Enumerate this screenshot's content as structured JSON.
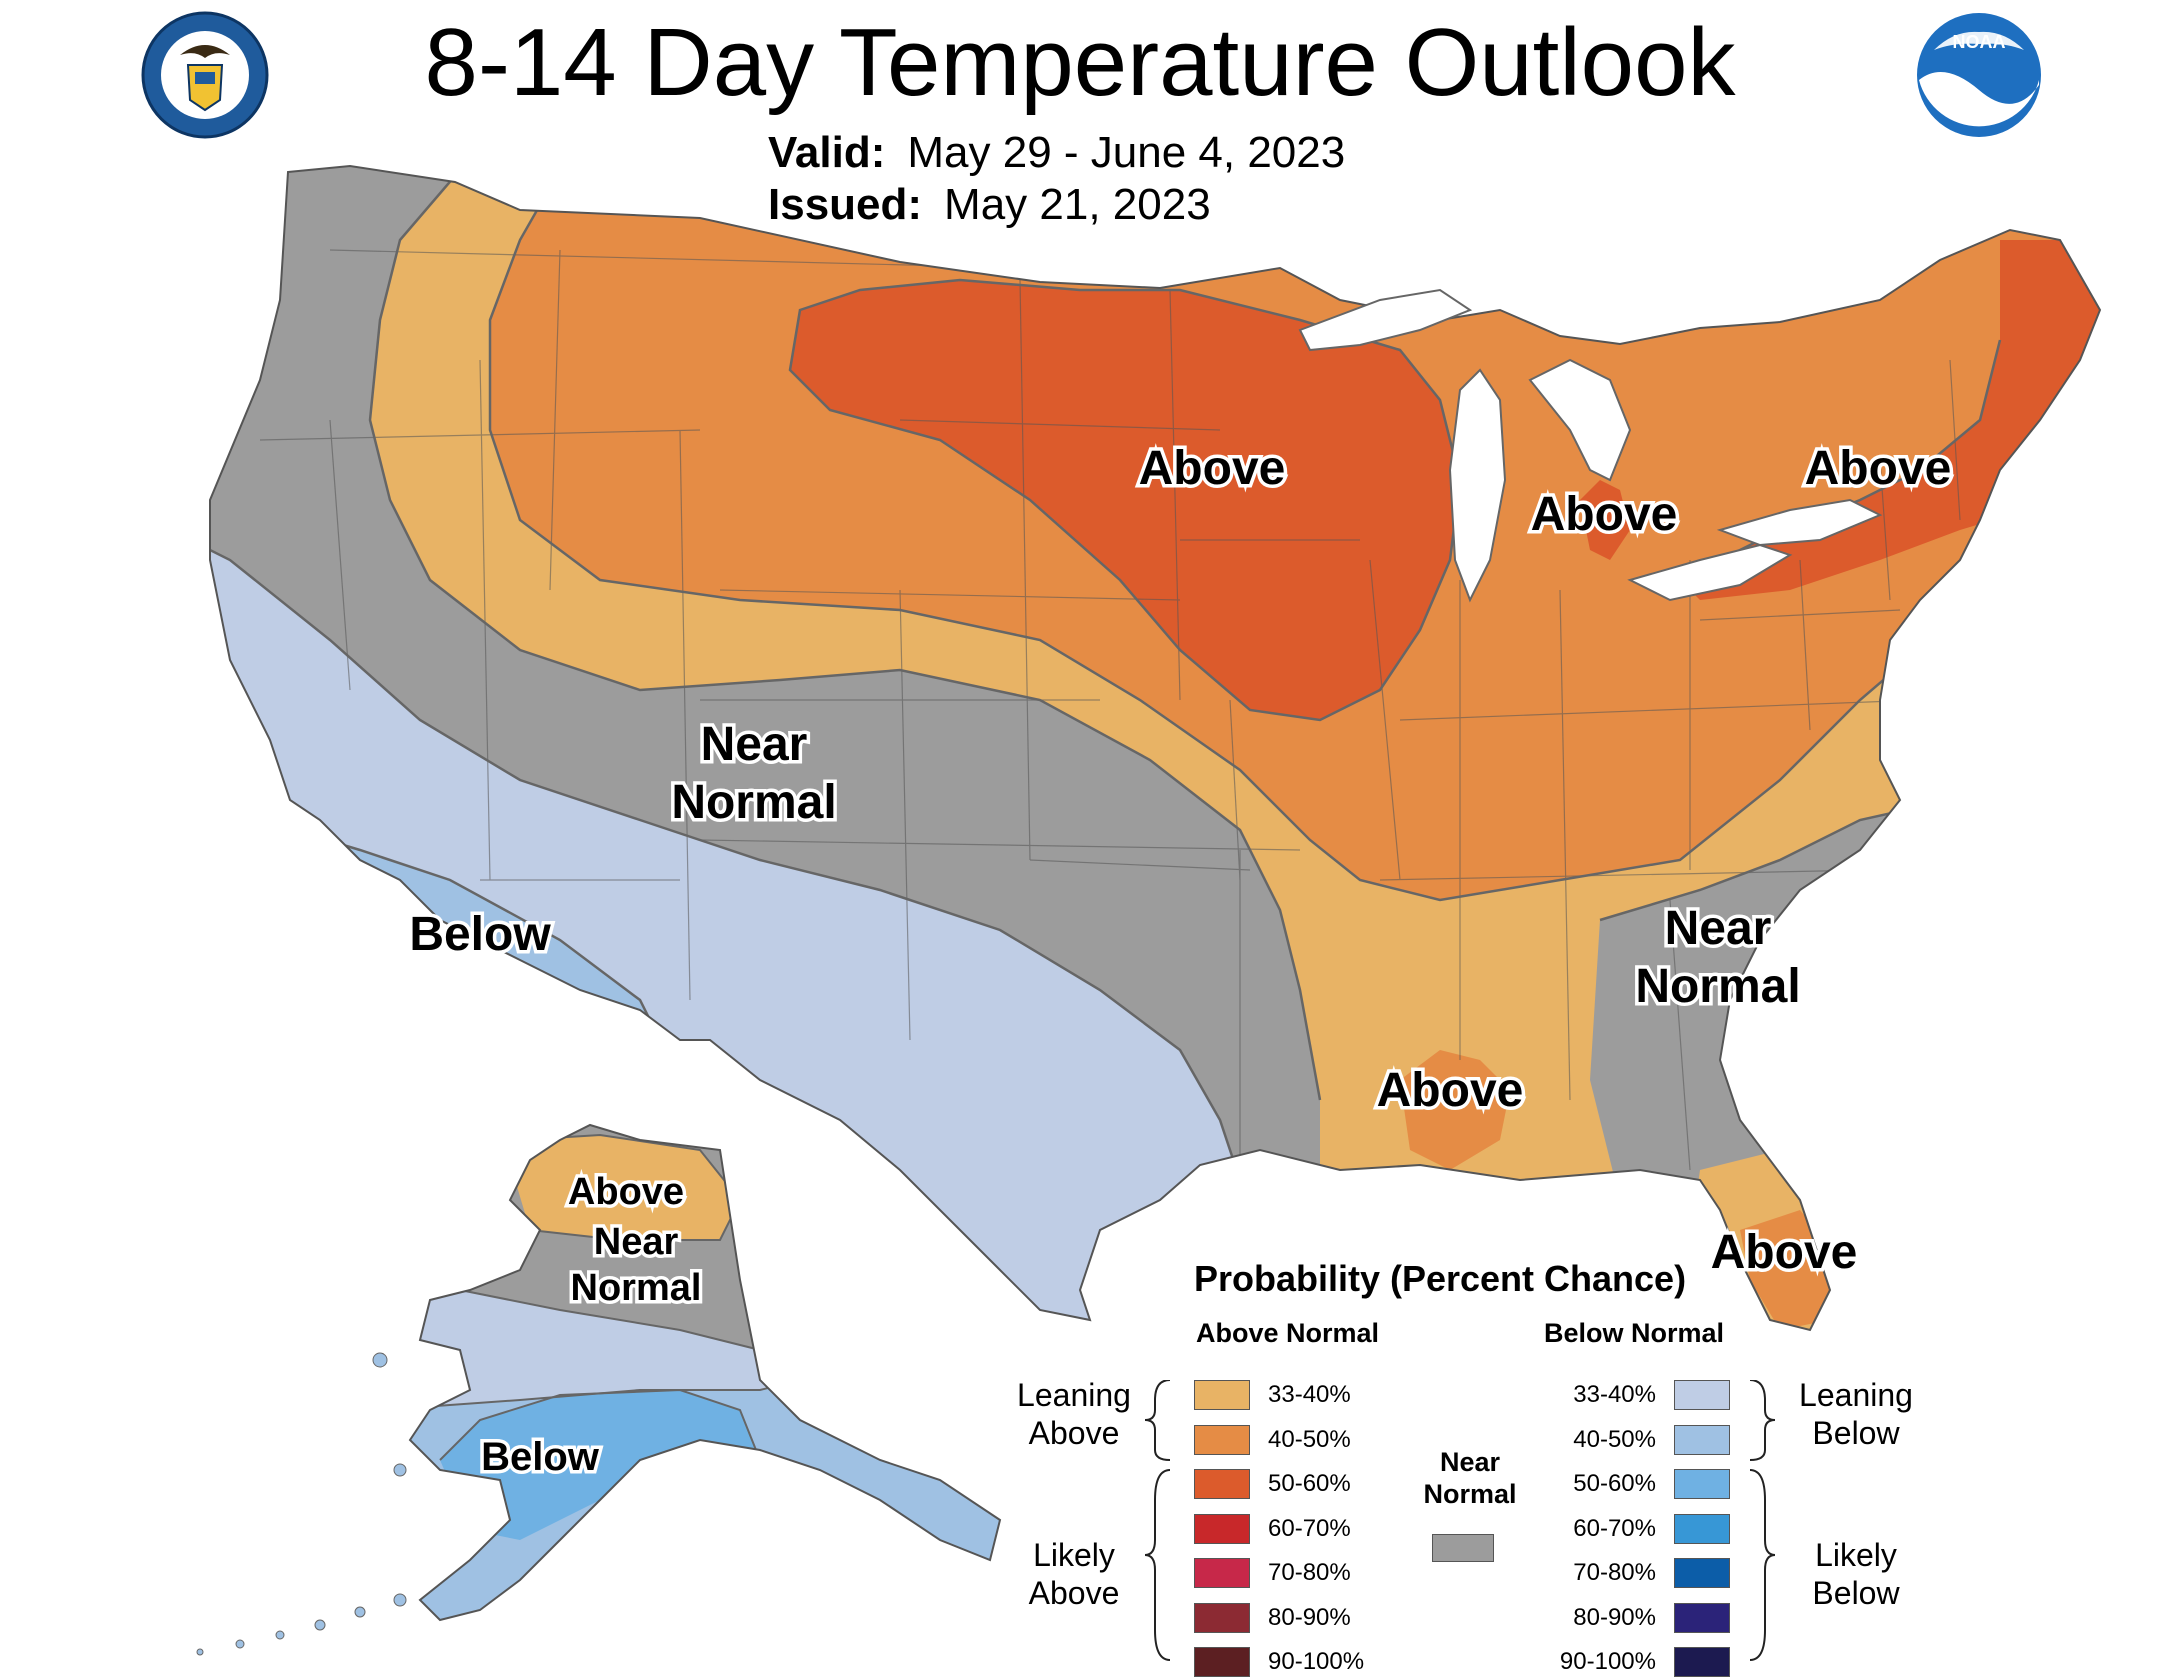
{
  "title": "8-14 Day Temperature Outlook",
  "valid": {
    "label": "Valid:",
    "value": "May 29 - June 4, 2023"
  },
  "issued": {
    "label": "Issued:",
    "value": "May 21, 2023"
  },
  "logos": {
    "doc_seal": {
      "icon": "doc-seal-icon",
      "colors": [
        "#1f5b9c",
        "#f1c232"
      ]
    },
    "noaa": {
      "icon": "noaa-logo-icon",
      "text": "NOAA",
      "colors": [
        "#1e6fc0",
        "#ffffff"
      ]
    }
  },
  "regions": {
    "above_midwest": "Above",
    "above_michigan": "Above",
    "above_northeast": "Above",
    "above_gulf": "Above",
    "above_florida": "Above",
    "near_normal_west_1": "Near",
    "near_normal_west_2": "Normal",
    "near_normal_southeast_1": "Near",
    "near_normal_southeast_2": "Normal",
    "below_southwest": "Below",
    "above_alaska": "Above",
    "near_normal_alaska_1": "Near",
    "near_normal_alaska_2": "Normal",
    "below_alaska": "Below"
  },
  "legend": {
    "title": "Probability (Percent Chance)",
    "above_heading": "Above Normal",
    "below_heading": "Below Normal",
    "near_label_1": "Near",
    "near_label_2": "Normal",
    "near_color": "#9c9c9c",
    "leaning_above_1": "Leaning",
    "leaning_above_2": "Above",
    "likely_above_1": "Likely",
    "likely_above_2": "Above",
    "leaning_below_1": "Leaning",
    "leaning_below_2": "Below",
    "likely_below_1": "Likely",
    "likely_below_2": "Below",
    "above": [
      {
        "label": "33-40%",
        "color": "#e8b365"
      },
      {
        "label": "40-50%",
        "color": "#e58c45"
      },
      {
        "label": "50-60%",
        "color": "#dc5b2c"
      },
      {
        "label": "60-70%",
        "color": "#c8282a"
      },
      {
        "label": "70-80%",
        "color": "#c72849"
      },
      {
        "label": "80-90%",
        "color": "#8c2a33"
      },
      {
        "label": "90-100%",
        "color": "#5c1f22"
      }
    ],
    "below": [
      {
        "label": "33-40%",
        "color": "#bfcde5"
      },
      {
        "label": "40-50%",
        "color": "#9fc1e3"
      },
      {
        "label": "50-60%",
        "color": "#6fb1e3"
      },
      {
        "label": "60-70%",
        "color": "#3797d6"
      },
      {
        "label": "70-80%",
        "color": "#0c5da8"
      },
      {
        "label": "80-90%",
        "color": "#2b2379"
      },
      {
        "label": "90-100%",
        "color": "#1c1a50"
      }
    ]
  }
}
